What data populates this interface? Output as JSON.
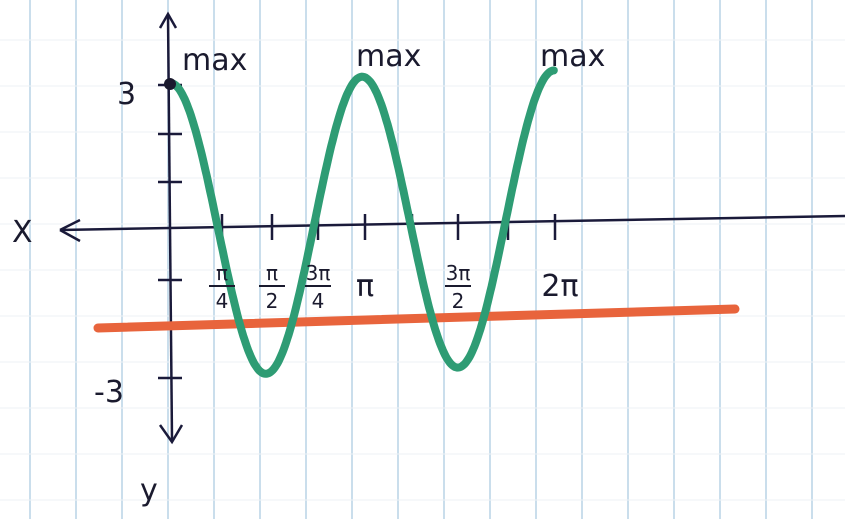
{
  "graph": {
    "x_axis_label": "X",
    "y_axis_label": "y",
    "y_max_label": "3",
    "y_min_label": "-3",
    "max_labels": [
      "max",
      "max",
      "max"
    ],
    "x_tick_labels": [
      {
        "num": "π",
        "den": "4"
      },
      {
        "num": "π",
        "den": "2"
      },
      {
        "num": "3π",
        "den": "4"
      },
      {
        "whole": "π"
      },
      {
        "num": "3π",
        "den": "2"
      },
      {
        "whole": "2π"
      }
    ]
  }
}
